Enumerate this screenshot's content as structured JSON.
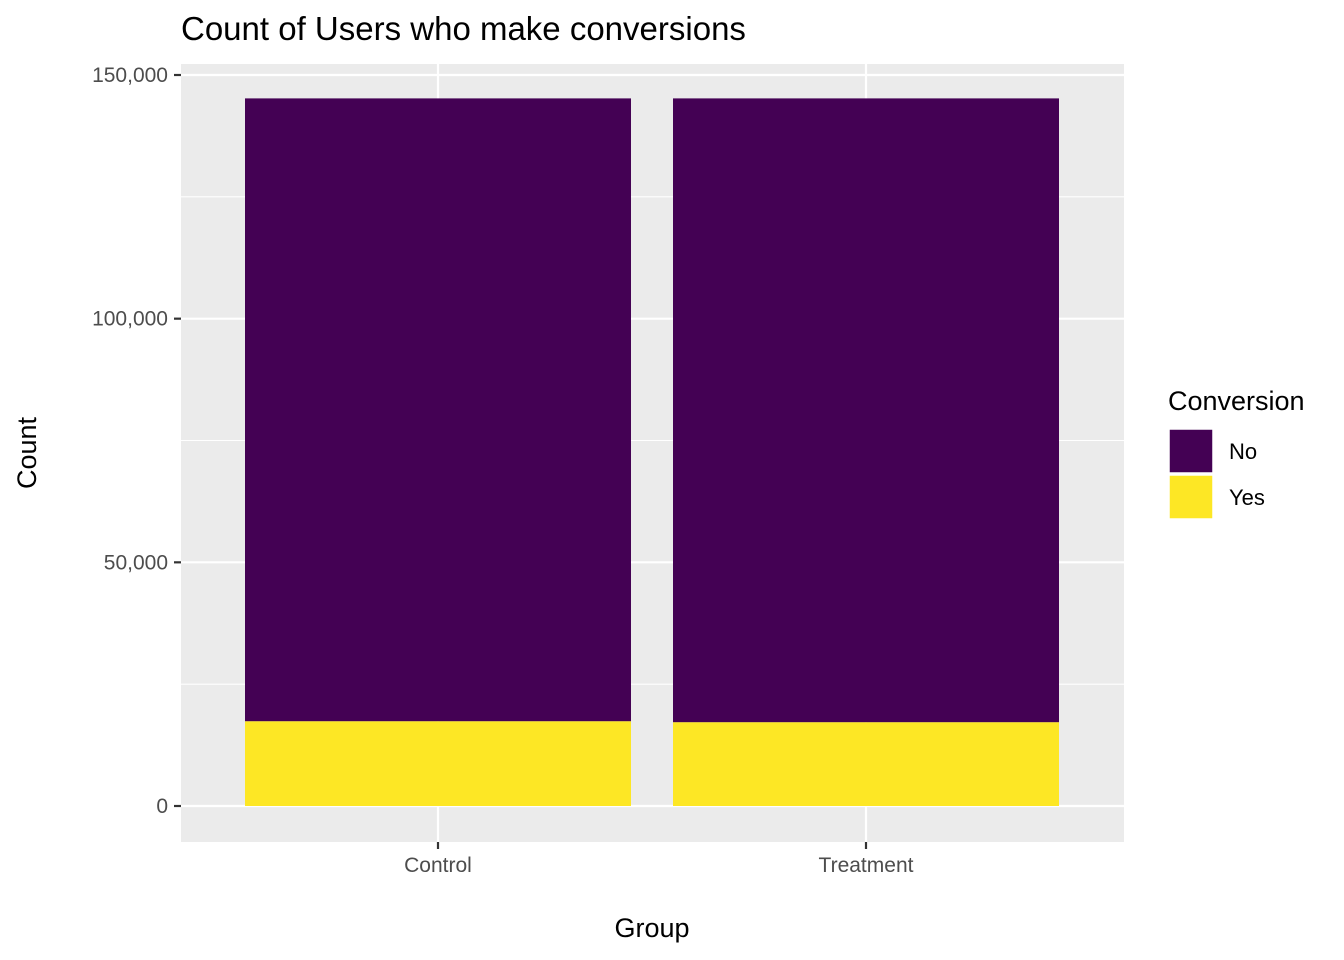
{
  "chart_data": {
    "type": "bar",
    "stacked": true,
    "title": "Count of Users who make conversions",
    "xlabel": "Group",
    "ylabel": "Count",
    "categories": [
      "Control",
      "Treatment"
    ],
    "series": [
      {
        "name": "No",
        "color": "#440154",
        "values": [
          127800,
          128000
        ]
      },
      {
        "name": "Yes",
        "color": "#FDE725",
        "values": [
          17400,
          17200
        ]
      }
    ],
    "ylim": [
      0,
      150000
    ],
    "yticks": [
      0,
      50000,
      100000,
      150000
    ],
    "ytick_labels": [
      "0",
      "50,000",
      "100,000",
      "150,000"
    ],
    "grid": true,
    "legend": {
      "title": "Conversion",
      "position": "right"
    },
    "colors": {
      "panel": "#EBEBEB",
      "grid": "#FFFFFF",
      "tick": "#333333"
    }
  }
}
